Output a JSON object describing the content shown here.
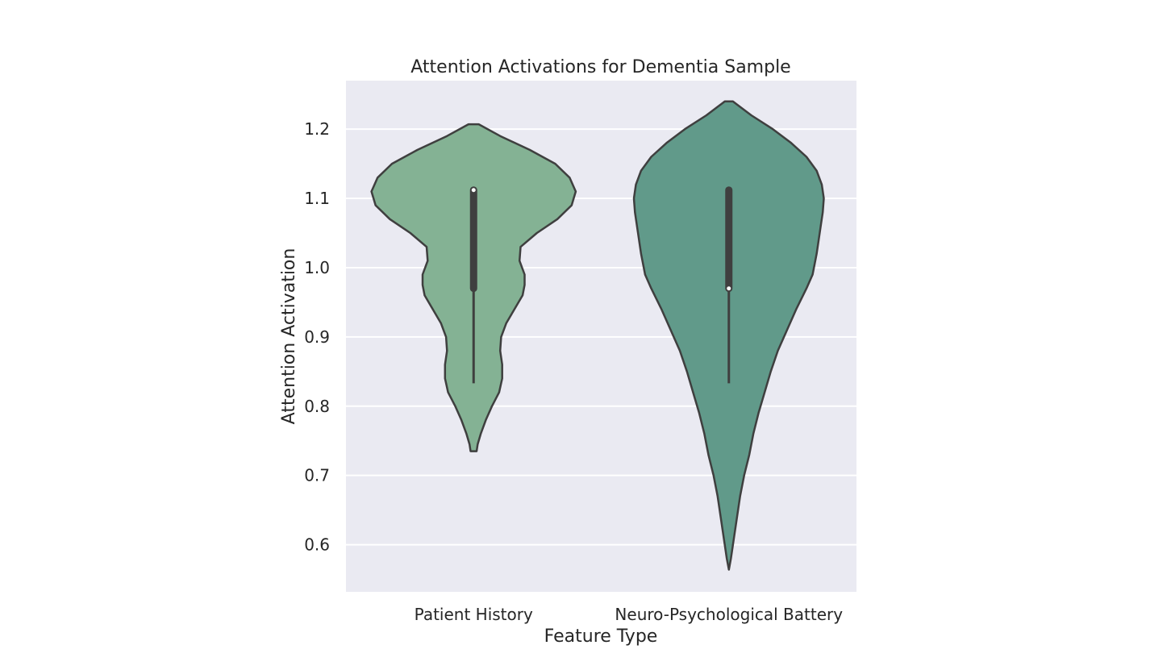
{
  "chart_data": {
    "type": "violin",
    "title": "Attention Activations for Dementia Sample",
    "xlabel": "Feature Type",
    "ylabel": "Attention Activation",
    "categories": [
      "Patient History",
      "Neuro-Psychological Battery"
    ],
    "ylim": [
      0.532,
      1.27
    ],
    "yticks": [
      0.6,
      0.7,
      0.8,
      0.9,
      1.0,
      1.1,
      1.2
    ],
    "ytick_labels": [
      "0.6",
      "0.7",
      "0.8",
      "0.9",
      "1.0",
      "1.1",
      "1.2"
    ],
    "grid": true,
    "colors": {
      "background": "#eaeaf2",
      "grid": "#ffffff",
      "outline": "#3f3f3f",
      "text": "#262626"
    },
    "violins": [
      {
        "category": "Patient History",
        "color": "#84b294",
        "min": 0.735,
        "max": 1.207,
        "q1": 0.97,
        "median": 1.112,
        "q3": 1.112,
        "whisker_low": 0.833,
        "whisker_high": 1.112,
        "profile": [
          [
            1.207,
            0.05
          ],
          [
            1.19,
            0.26
          ],
          [
            1.17,
            0.55
          ],
          [
            1.15,
            0.8
          ],
          [
            1.13,
            0.94
          ],
          [
            1.11,
            1.0
          ],
          [
            1.09,
            0.96
          ],
          [
            1.07,
            0.82
          ],
          [
            1.05,
            0.62
          ],
          [
            1.03,
            0.46
          ],
          [
            1.01,
            0.45
          ],
          [
            0.99,
            0.5
          ],
          [
            0.975,
            0.5
          ],
          [
            0.96,
            0.48
          ],
          [
            0.94,
            0.4
          ],
          [
            0.92,
            0.32
          ],
          [
            0.9,
            0.27
          ],
          [
            0.88,
            0.26
          ],
          [
            0.86,
            0.28
          ],
          [
            0.84,
            0.28
          ],
          [
            0.82,
            0.25
          ],
          [
            0.8,
            0.18
          ],
          [
            0.78,
            0.12
          ],
          [
            0.76,
            0.07
          ],
          [
            0.745,
            0.04
          ],
          [
            0.735,
            0.03
          ]
        ]
      },
      {
        "category": "Neuro-Psychological Battery",
        "color": "#619a8a",
        "min": 0.564,
        "max": 1.24,
        "q1": 0.97,
        "median": 0.97,
        "q3": 1.112,
        "whisker_low": 0.833,
        "whisker_high": 1.112,
        "profile": [
          [
            1.24,
            0.04
          ],
          [
            1.22,
            0.22
          ],
          [
            1.2,
            0.43
          ],
          [
            1.18,
            0.61
          ],
          [
            1.16,
            0.76
          ],
          [
            1.14,
            0.86
          ],
          [
            1.12,
            0.91
          ],
          [
            1.1,
            0.93
          ],
          [
            1.08,
            0.92
          ],
          [
            1.05,
            0.89
          ],
          [
            1.02,
            0.86
          ],
          [
            0.99,
            0.82
          ],
          [
            0.97,
            0.76
          ],
          [
            0.94,
            0.66
          ],
          [
            0.91,
            0.57
          ],
          [
            0.88,
            0.48
          ],
          [
            0.85,
            0.41
          ],
          [
            0.82,
            0.35
          ],
          [
            0.79,
            0.29
          ],
          [
            0.76,
            0.24
          ],
          [
            0.73,
            0.2
          ],
          [
            0.7,
            0.15
          ],
          [
            0.67,
            0.11
          ],
          [
            0.64,
            0.08
          ],
          [
            0.61,
            0.05
          ],
          [
            0.58,
            0.02
          ],
          [
            0.564,
            0.0
          ]
        ]
      }
    ]
  }
}
